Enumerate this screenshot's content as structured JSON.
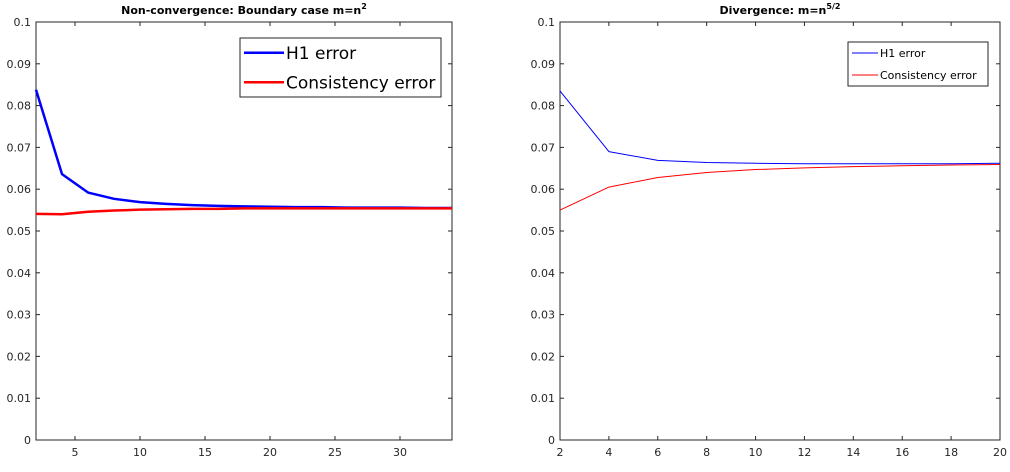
{
  "chart_data": [
    {
      "type": "line",
      "title": "Non-convergence: Boundary case m=n",
      "title_sup": "2",
      "xlabel": "",
      "ylabel": "",
      "xlim": [
        2,
        34
      ],
      "ylim": [
        0,
        0.1
      ],
      "xticks": [
        5,
        10,
        15,
        20,
        25,
        30
      ],
      "yticks": [
        0,
        0.01,
        0.02,
        0.03,
        0.04,
        0.05,
        0.06,
        0.07,
        0.08,
        0.09,
        0.1
      ],
      "ytick_labels": [
        "0",
        "0.01",
        "0.02",
        "0.03",
        "0.04",
        "0.05",
        "0.06",
        "0.07",
        "0.08",
        "0.09",
        "0.1"
      ],
      "legend_position": "top-right",
      "x": [
        2,
        4,
        6,
        8,
        10,
        12,
        14,
        16,
        18,
        20,
        22,
        24,
        26,
        28,
        30,
        32,
        34
      ],
      "series": [
        {
          "name": "H1 error",
          "color": "#0000ff",
          "values": [
            0.0838,
            0.0636,
            0.0592,
            0.0577,
            0.0569,
            0.0565,
            0.0562,
            0.056,
            0.0559,
            0.0558,
            0.0557,
            0.0557,
            0.0556,
            0.0556,
            0.0556,
            0.0555,
            0.0555
          ]
        },
        {
          "name": "Consistency error",
          "color": "#ff0000",
          "values": [
            0.0541,
            0.054,
            0.0546,
            0.0549,
            0.0551,
            0.0552,
            0.0553,
            0.0553,
            0.0554,
            0.0554,
            0.0554,
            0.0554,
            0.0554,
            0.0554,
            0.0554,
            0.0554,
            0.0554
          ]
        }
      ]
    },
    {
      "type": "line",
      "title": "Divergence: m=n",
      "title_sup": "5/2",
      "xlabel": "",
      "ylabel": "",
      "xlim": [
        2,
        20
      ],
      "ylim": [
        0,
        0.1
      ],
      "xticks": [
        2,
        4,
        6,
        8,
        10,
        12,
        14,
        16,
        18,
        20
      ],
      "yticks": [
        0,
        0.01,
        0.02,
        0.03,
        0.04,
        0.05,
        0.06,
        0.07,
        0.08,
        0.09,
        0.1
      ],
      "ytick_labels": [
        "0",
        "0.01",
        "0.02",
        "0.03",
        "0.04",
        "0.05",
        "0.06",
        "0.07",
        "0.08",
        "0.09",
        "0.1"
      ],
      "legend_position": "top-right",
      "x": [
        2,
        4,
        6,
        8,
        10,
        12,
        14,
        16,
        18,
        20
      ],
      "series": [
        {
          "name": "H1 error",
          "color": "#0000ff",
          "values": [
            0.0835,
            0.069,
            0.0669,
            0.0664,
            0.0662,
            0.0661,
            0.0661,
            0.0661,
            0.0661,
            0.0662
          ]
        },
        {
          "name": "Consistency error",
          "color": "#ff0000",
          "values": [
            0.055,
            0.0605,
            0.0628,
            0.064,
            0.0647,
            0.0651,
            0.0654,
            0.0656,
            0.0658,
            0.0659
          ]
        }
      ]
    }
  ]
}
